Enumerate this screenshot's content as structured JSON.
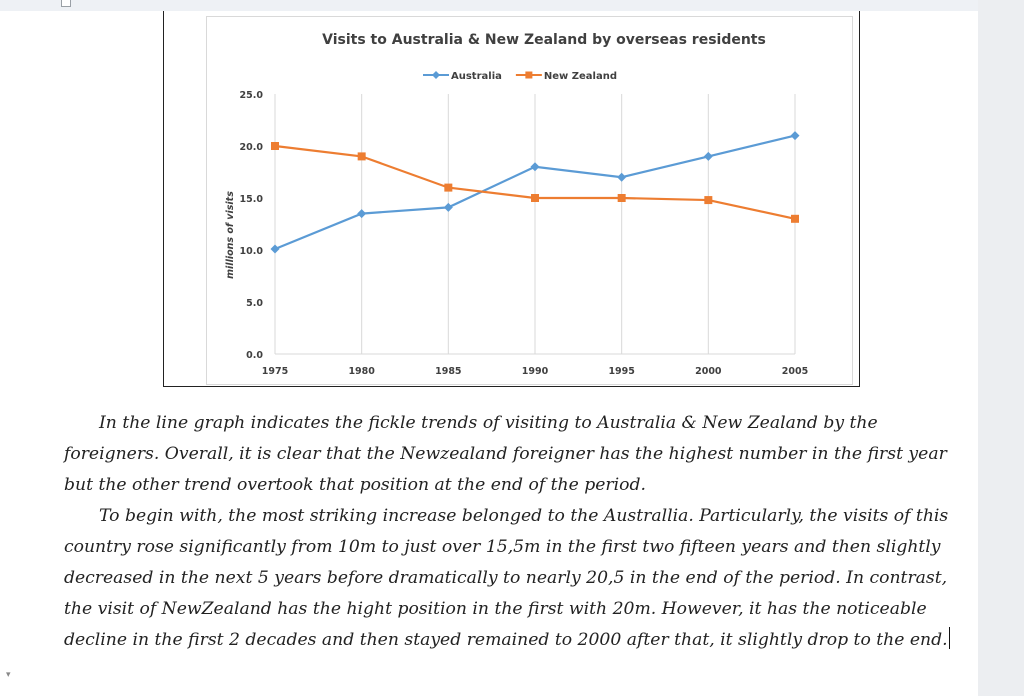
{
  "chart_data": {
    "type": "line",
    "title": "Visits to Australia & New Zealand by overseas residents",
    "ylabel": "millions of visits",
    "xlabel": "",
    "x": [
      "1975",
      "1980",
      "1985",
      "1990",
      "1995",
      "2000",
      "2005"
    ],
    "ylim": [
      0,
      25
    ],
    "yticks": [
      "0.0",
      "5.0",
      "10.0",
      "15.0",
      "20.0",
      "25.0"
    ],
    "grid": "vertical",
    "legend_position": "top",
    "series": [
      {
        "name": "Australia",
        "color": "#5b9bd5",
        "marker": "diamond",
        "values": [
          10.1,
          13.5,
          14.1,
          18.0,
          17.0,
          19.0,
          21.0
        ]
      },
      {
        "name": "New Zealand",
        "color": "#ed7d31",
        "marker": "square",
        "values": [
          20.0,
          19.0,
          16.0,
          15.0,
          15.0,
          14.8,
          13.0
        ]
      }
    ]
  },
  "essay": {
    "paragraphs": [
      "In the line graph indicates the fickle trends of visiting to Australia & New Zealand by the foreigners. Overall, it is clear that the Newzealand foreigner has the highest number in the first year but the other trend overtook that position at the end of the period.",
      "To begin with, the most striking increase belonged to the Australlia. Particularly, the visits of this country rose significantly from 10m to just over 15,5m in the first two fifteen years and then slightly decreased in the next 5 years before dramatically  to nearly 20,5 in the end of the period. In contrast, the visit of NewZealand has the hight position in the first with 20m. However, it has the noticeable decline in the first 2 decades and then stayed remained to 2000 after that, it slightly drop to the end."
    ]
  }
}
